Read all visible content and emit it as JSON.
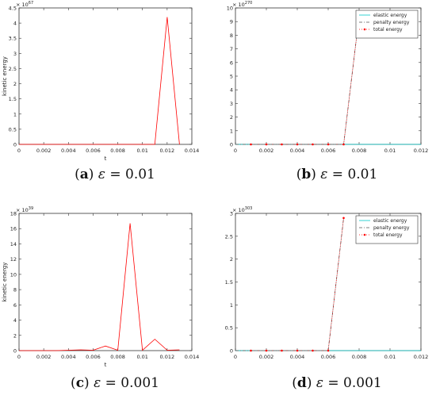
{
  "chart_data": [
    {
      "type": "line",
      "panel_label": "a",
      "caption_symbol": "ε",
      "caption_value": "0.01",
      "ylabel": "kinetic energy",
      "xlabel": "t",
      "multiplier": "× 10^67",
      "xlim": [
        0,
        0.014
      ],
      "ylim": [
        0,
        4.5
      ],
      "x_ticks": [
        "0",
        "0.002",
        "0.004",
        "0.006",
        "0.008",
        "0.01",
        "0.012",
        "0.014"
      ],
      "x_tick_values": [
        0,
        0.002,
        0.004,
        0.006,
        0.008,
        0.01,
        0.012,
        0.014
      ],
      "y_ticks": [
        "0",
        "0.5",
        "1",
        "1.5",
        "2",
        "2.5",
        "3",
        "3.5",
        "4",
        "4.5"
      ],
      "y_tick_values": [
        0,
        0.5,
        1,
        1.5,
        2,
        2.5,
        3,
        3.5,
        4,
        4.5
      ],
      "series": [
        {
          "color": "#ff0000",
          "style": "solid",
          "x": [
            0,
            0.001,
            0.002,
            0.003,
            0.004,
            0.005,
            0.006,
            0.007,
            0.008,
            0.009,
            0.01,
            0.011,
            0.012,
            0.013
          ],
          "y": [
            0,
            0,
            0,
            0,
            0,
            0,
            0,
            0,
            0,
            0,
            0,
            0,
            4.2,
            0
          ]
        }
      ]
    },
    {
      "type": "line",
      "panel_label": "b",
      "caption_symbol": "ε",
      "caption_value": "0.01",
      "ylabel": "",
      "xlabel": "",
      "multiplier": "× 10^270",
      "xlim": [
        0,
        0.012
      ],
      "ylim": [
        0,
        10
      ],
      "x_ticks": [
        "0",
        "0.002",
        "0.004",
        "0.006",
        "0.008",
        "0.01",
        "0.012"
      ],
      "x_tick_values": [
        0,
        0.002,
        0.004,
        0.006,
        0.008,
        0.01,
        0.012
      ],
      "y_ticks": [
        "0",
        "1",
        "2",
        "3",
        "4",
        "5",
        "6",
        "7",
        "8",
        "9",
        "10"
      ],
      "y_tick_values": [
        0,
        1,
        2,
        3,
        4,
        5,
        6,
        7,
        8,
        9,
        10
      ],
      "legend_placement": "top-right",
      "series": [
        {
          "name": "elastic energy",
          "color": "#00c8c8",
          "style": "solid",
          "x": [
            0,
            0.001,
            0.002,
            0.003,
            0.004,
            0.005,
            0.006,
            0.007,
            0.008,
            0.009,
            0.01,
            0.011,
            0.012
          ],
          "y": [
            0,
            0,
            0,
            0,
            0,
            0,
            0,
            0,
            0,
            0,
            0,
            0,
            0
          ]
        },
        {
          "name": "penalty energy",
          "color": "#555555",
          "style": "dashdot",
          "x": [
            0,
            0.001,
            0.002,
            0.003,
            0.004,
            0.005,
            0.006,
            0.007,
            0.008
          ],
          "y": [
            0,
            0,
            0,
            0,
            0,
            0,
            0,
            0,
            9.4
          ]
        },
        {
          "name": "total energy",
          "color": "#ff0000",
          "style": "dotted-marker",
          "x": [
            0.001,
            0.002,
            0.003,
            0.004,
            0.005,
            0.006,
            0.007,
            0.008
          ],
          "y": [
            0,
            0,
            0,
            0,
            0,
            0,
            0,
            9.4
          ]
        }
      ]
    },
    {
      "type": "line",
      "panel_label": "c",
      "caption_symbol": "ε",
      "caption_value": "0.001",
      "ylabel": "kinetic energy",
      "xlabel": "t",
      "multiplier": "× 10^39",
      "xlim": [
        0,
        0.014
      ],
      "ylim": [
        0,
        18
      ],
      "x_ticks": [
        "0",
        "0.002",
        "0.004",
        "0.006",
        "0.008",
        "0.01",
        "0.012",
        "0.014"
      ],
      "x_tick_values": [
        0,
        0.002,
        0.004,
        0.006,
        0.008,
        0.01,
        0.012,
        0.014
      ],
      "y_ticks": [
        "0",
        "2",
        "4",
        "6",
        "8",
        "10",
        "12",
        "14",
        "16",
        "18"
      ],
      "y_tick_values": [
        0,
        2,
        4,
        6,
        8,
        10,
        12,
        14,
        16,
        18
      ],
      "series": [
        {
          "color": "#ff0000",
          "style": "solid",
          "x": [
            0,
            0.001,
            0.002,
            0.003,
            0.004,
            0.005,
            0.006,
            0.007,
            0.008,
            0.009,
            0.01,
            0.011,
            0.012,
            0.013
          ],
          "y": [
            0,
            0,
            0,
            0,
            0.05,
            0.1,
            0.05,
            0.6,
            0.05,
            16.7,
            0.05,
            1.5,
            0.05,
            0.1
          ]
        }
      ]
    },
    {
      "type": "line",
      "panel_label": "d",
      "caption_symbol": "ε",
      "caption_value": "0.001",
      "ylabel": "",
      "xlabel": "",
      "multiplier": "× 10^303",
      "xlim": [
        0,
        0.012
      ],
      "ylim": [
        0,
        3
      ],
      "x_ticks": [
        "0",
        "0.002",
        "0.004",
        "0.006",
        "0.008",
        "0.01",
        "0.012"
      ],
      "x_tick_values": [
        0,
        0.002,
        0.004,
        0.006,
        0.008,
        0.01,
        0.012
      ],
      "y_ticks": [
        "0",
        "0.5",
        "1",
        "1.5",
        "2",
        "2.5",
        "3"
      ],
      "y_tick_values": [
        0,
        0.5,
        1,
        1.5,
        2,
        2.5,
        3
      ],
      "legend_placement": "top-right",
      "series": [
        {
          "name": "elastic energy",
          "color": "#00c8c8",
          "style": "solid",
          "x": [
            0,
            0.001,
            0.002,
            0.003,
            0.004,
            0.005,
            0.006,
            0.007,
            0.008,
            0.009,
            0.01,
            0.011,
            0.012
          ],
          "y": [
            0,
            0,
            0,
            0,
            0,
            0,
            0,
            0,
            0,
            0,
            0,
            0,
            0
          ]
        },
        {
          "name": "penalty energy",
          "color": "#555555",
          "style": "dashdot",
          "x": [
            0,
            0.001,
            0.002,
            0.003,
            0.004,
            0.005,
            0.006,
            0.007
          ],
          "y": [
            0,
            0,
            0,
            0,
            0,
            0,
            0,
            2.9
          ]
        },
        {
          "name": "total energy",
          "color": "#ff0000",
          "style": "dotted-marker",
          "x": [
            0.001,
            0.002,
            0.003,
            0.004,
            0.005,
            0.006,
            0.007
          ],
          "y": [
            0,
            0,
            0,
            0,
            0,
            0,
            2.9
          ]
        }
      ]
    }
  ]
}
